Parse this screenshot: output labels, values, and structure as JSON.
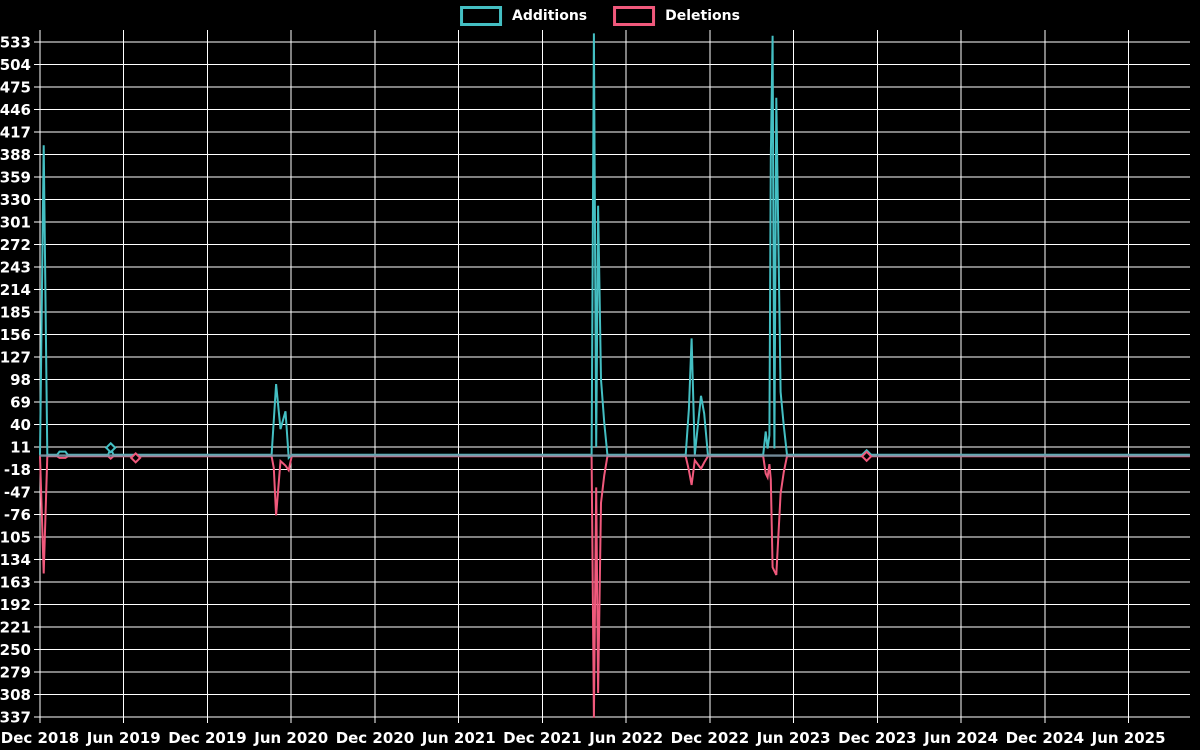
{
  "legend": {
    "additions_label": "Additions",
    "deletions_label": "Deletions"
  },
  "colors": {
    "additions": "#44bfc3",
    "deletions": "#f0597c",
    "grid": "#ffffff",
    "background": "#000000",
    "text": "#ffffff",
    "zero_line": "#7e98a7"
  },
  "chart_data": {
    "type": "line",
    "title": "",
    "xlabel": "",
    "ylabel": "",
    "grid": true,
    "legend_position": "top-center",
    "x_tick_labels": [
      "Dec 2018",
      "Jun 2019",
      "Dec 2019",
      "Jun 2020",
      "Dec 2020",
      "Jun 2021",
      "Dec 2021",
      "Jun 2022",
      "Dec 2022",
      "Jun 2023",
      "Dec 2023",
      "Jun 2024",
      "Dec 2024",
      "Jun 2025"
    ],
    "x_tick_interval_months": 6,
    "x_start": "2018-12-01",
    "months_span": 82.4,
    "ylim": [
      -337,
      533
    ],
    "ytick_step": 29,
    "yticks": [
      533,
      504,
      475,
      446,
      417,
      388,
      359,
      330,
      301,
      272,
      243,
      214,
      185,
      156,
      127,
      98,
      69,
      40,
      11,
      -18,
      -47,
      -76,
      -105,
      -134,
      -163,
      -192,
      -221,
      -250,
      -279,
      -308,
      -337
    ],
    "series": [
      {
        "name": "Additions",
        "color": "#44bfc3",
        "points": [
          [
            "2018-12-01",
            0
          ],
          [
            "2018-12-09",
            399
          ],
          [
            "2018-12-17",
            0
          ],
          [
            "2019-01-08",
            0
          ],
          [
            "2019-01-13",
            4
          ],
          [
            "2019-01-26",
            4
          ],
          [
            "2019-01-31",
            0
          ],
          [
            "2019-04-28",
            0
          ],
          [
            "2019-05-03",
            9
          ],
          [
            "2019-05-09",
            0
          ],
          [
            "2020-04-19",
            0
          ],
          [
            "2020-04-29",
            91
          ],
          [
            "2020-05-08",
            33
          ],
          [
            "2020-05-19",
            56
          ],
          [
            "2020-05-26",
            -4
          ],
          [
            "2020-06-02",
            0
          ],
          [
            "2022-03-17",
            0
          ],
          [
            "2022-03-22",
            543
          ],
          [
            "2022-03-27",
            10
          ],
          [
            "2022-03-31",
            321
          ],
          [
            "2022-04-07",
            97
          ],
          [
            "2022-04-14",
            42
          ],
          [
            "2022-04-21",
            0
          ],
          [
            "2022-10-09",
            0
          ],
          [
            "2022-10-16",
            59
          ],
          [
            "2022-10-22",
            150
          ],
          [
            "2022-10-29",
            0
          ],
          [
            "2022-11-12",
            76
          ],
          [
            "2022-11-19",
            53
          ],
          [
            "2022-11-27",
            0
          ],
          [
            "2023-03-26",
            0
          ],
          [
            "2023-04-01",
            30
          ],
          [
            "2023-04-05",
            8
          ],
          [
            "2023-04-09",
            25
          ],
          [
            "2023-04-12",
            381
          ],
          [
            "2023-04-16",
            540
          ],
          [
            "2023-04-20",
            8
          ],
          [
            "2023-04-24",
            460
          ],
          [
            "2023-05-03",
            81
          ],
          [
            "2023-05-10",
            37
          ],
          [
            "2023-05-17",
            0
          ],
          [
            "2023-11-08",
            0
          ],
          [
            "2025-10-13",
            0
          ]
        ],
        "markers": [
          [
            "2019-05-03",
            9
          ],
          [
            "2023-11-08",
            0
          ]
        ]
      },
      {
        "name": "Deletions",
        "color": "#f0597c",
        "points": [
          [
            "2018-12-01",
            0
          ],
          [
            "2018-12-09",
            -151
          ],
          [
            "2018-12-17",
            0
          ],
          [
            "2019-01-08",
            0
          ],
          [
            "2019-01-13",
            -2
          ],
          [
            "2019-01-26",
            -2
          ],
          [
            "2019-01-31",
            0
          ],
          [
            "2019-04-28",
            0
          ],
          [
            "2019-05-03",
            -3
          ],
          [
            "2019-05-09",
            0
          ],
          [
            "2019-06-22",
            0
          ],
          [
            "2019-06-27",
            -2
          ],
          [
            "2019-07-03",
            0
          ],
          [
            "2020-04-19",
            0
          ],
          [
            "2020-04-24",
            -15
          ],
          [
            "2020-04-29",
            -76
          ],
          [
            "2020-05-08",
            -6
          ],
          [
            "2020-05-19",
            -12
          ],
          [
            "2020-05-26",
            -18
          ],
          [
            "2020-06-02",
            0
          ],
          [
            "2022-03-17",
            0
          ],
          [
            "2022-03-22",
            -337
          ],
          [
            "2022-03-27",
            -40
          ],
          [
            "2022-03-31",
            -305
          ],
          [
            "2022-04-07",
            -60
          ],
          [
            "2022-04-14",
            -25
          ],
          [
            "2022-04-21",
            0
          ],
          [
            "2022-10-09",
            0
          ],
          [
            "2022-10-16",
            -18
          ],
          [
            "2022-10-22",
            -37
          ],
          [
            "2022-10-29",
            -5
          ],
          [
            "2022-11-12",
            -16
          ],
          [
            "2022-11-19",
            -8
          ],
          [
            "2022-11-27",
            0
          ],
          [
            "2023-03-26",
            0
          ],
          [
            "2023-04-01",
            -22
          ],
          [
            "2023-04-05",
            -27
          ],
          [
            "2023-04-09",
            -10
          ],
          [
            "2023-04-12",
            -30
          ],
          [
            "2023-04-16",
            -143
          ],
          [
            "2023-04-24",
            -153
          ],
          [
            "2023-05-03",
            -48
          ],
          [
            "2023-05-10",
            -20
          ],
          [
            "2023-05-17",
            0
          ],
          [
            "2023-11-08",
            0
          ],
          [
            "2025-10-13",
            0
          ]
        ],
        "markers": [
          [
            "2019-06-27",
            -2
          ],
          [
            "2023-11-08",
            0
          ]
        ]
      }
    ]
  }
}
